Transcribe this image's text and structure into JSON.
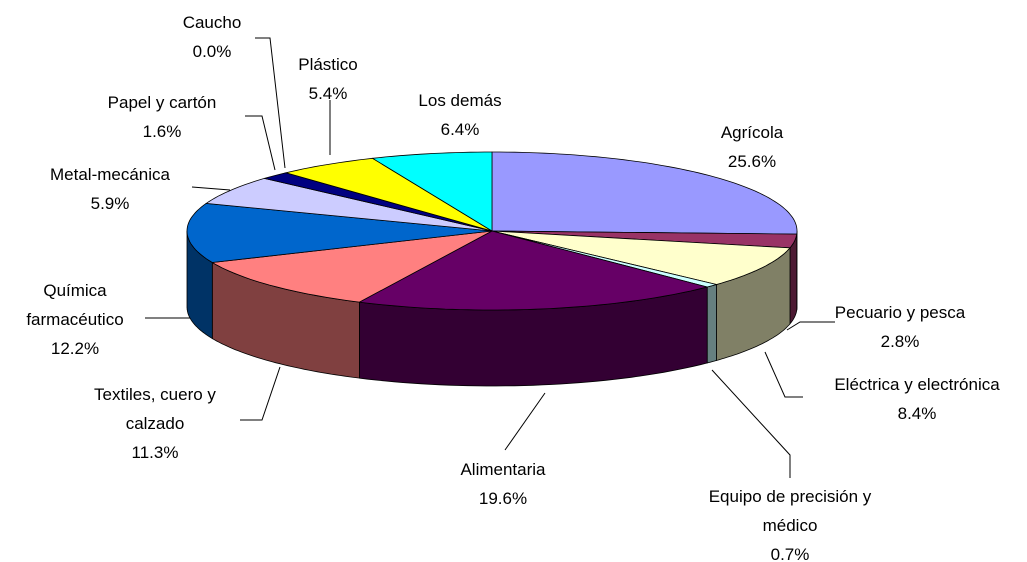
{
  "chart_data": {
    "type": "pie",
    "categories": [
      "Agrícola",
      "Pecuario y pesca",
      "Eléctrica y electrónica",
      "Equipo de precisión y médico",
      "Alimentaria",
      "Textiles, cuero y calzado",
      "Química farmacéutico",
      "Metal-mecánica",
      "Papel y cartón",
      "Caucho",
      "Plástico",
      "Los demás"
    ],
    "values": [
      25.6,
      2.8,
      8.4,
      0.7,
      19.6,
      11.3,
      12.2,
      5.9,
      1.6,
      0.0,
      5.4,
      6.4
    ],
    "value_labels": [
      "25.6%",
      "2.8%",
      "8.4%",
      "0.7%",
      "19.6%",
      "11.3%",
      "12.2%",
      "5.9%",
      "1.6%",
      "0.0%",
      "5.4%",
      "6.4%"
    ],
    "colors": [
      "#9999ff",
      "#993366",
      "#ffffcc",
      "#ccffff",
      "#660066",
      "#ff8080",
      "#0066cc",
      "#ccccff",
      "#000080",
      "#ff00ff",
      "#ffff00",
      "#00ffff"
    ],
    "three_d": true
  }
}
